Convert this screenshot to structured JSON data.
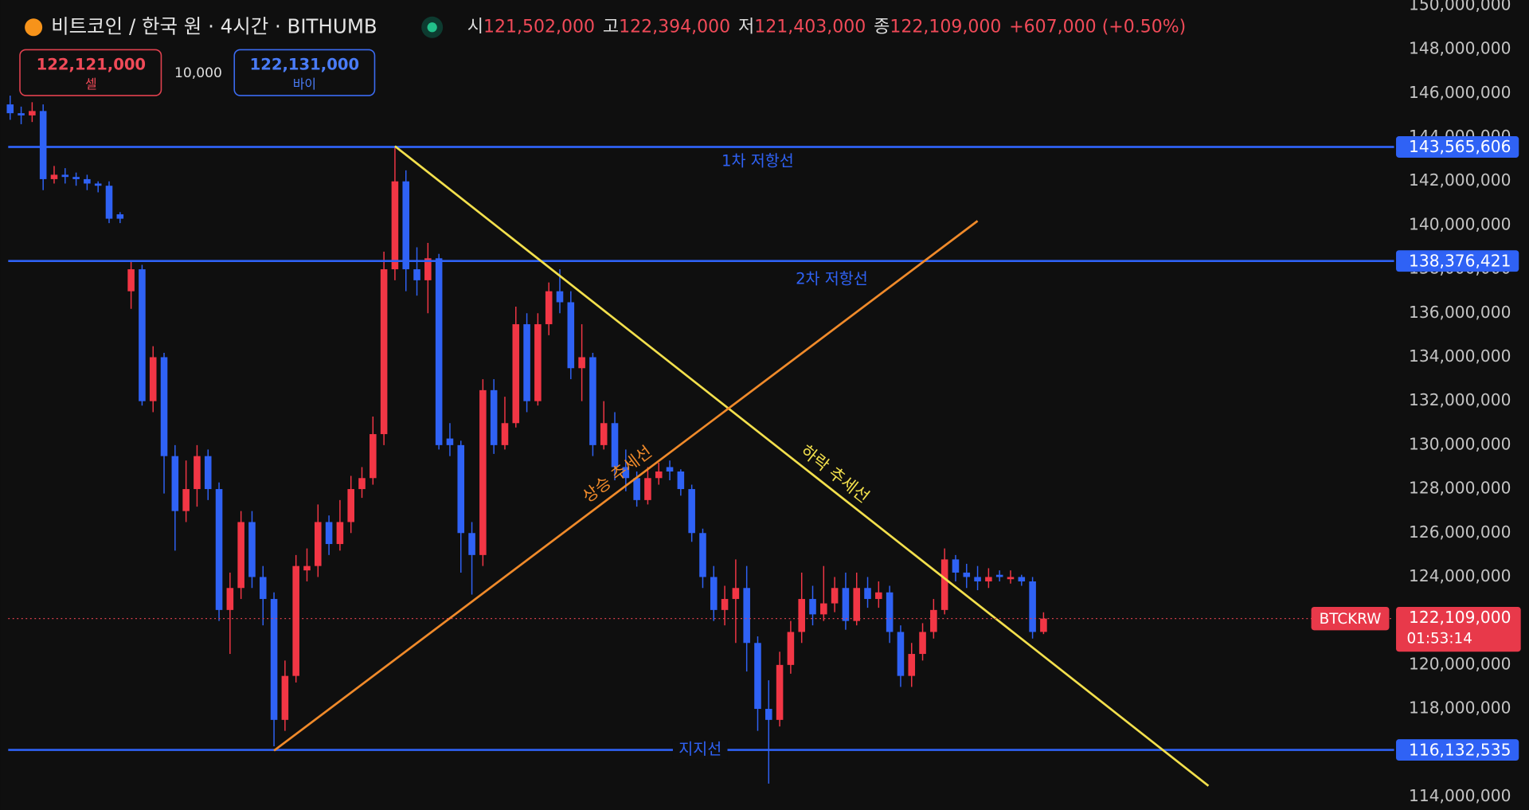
{
  "chart_data": {
    "type": "candlestick",
    "title": "비트코인 / 한국 원 · 4시간 · BITHUMB",
    "stats": [
      {
        "label": "시",
        "value": "121,502,000"
      },
      {
        "label": "고",
        "value": "122,394,000"
      },
      {
        "label": "저",
        "value": "121,403,000"
      },
      {
        "label": "종",
        "value": "122,109,000"
      }
    ],
    "change": "+607,000 (+0.50%)",
    "up_color": "#f23645",
    "down_color": "#2f62f5",
    "open": [
      145500000,
      145100000,
      145000000,
      145200000,
      142100000,
      142300000,
      142200000,
      142100000,
      141900000,
      141800000,
      140500000,
      137000000,
      138000000,
      132000000,
      134000000,
      129500000,
      127000000,
      128000000,
      129500000,
      128000000,
      122500000,
      123500000,
      126500000,
      124000000,
      123000000,
      117500000,
      119500000,
      124300000,
      124500000,
      126500000,
      125500000,
      126500000,
      128000000,
      128500000,
      130500000,
      138000000,
      142000000,
      138000000,
      137500000,
      138500000,
      130300000,
      130000000,
      126000000,
      125000000,
      132500000,
      130000000,
      131000000,
      135500000,
      132000000,
      135500000,
      137000000,
      136500000,
      133500000,
      134000000,
      130000000,
      131000000,
      129000000,
      128500000,
      127500000,
      128500000,
      129000000,
      128800000,
      128000000,
      126000000,
      124000000,
      122500000,
      123000000,
      123500000,
      121000000,
      118000000,
      117500000,
      120000000,
      121500000,
      123000000,
      122300000,
      122800000,
      123500000,
      122000000,
      123500000,
      123000000,
      123300000,
      121500000,
      119500000,
      120500000,
      121500000,
      122500000,
      124800000,
      124200000,
      124000000,
      123800000,
      124100000,
      123900000,
      124000000,
      123800000,
      121502000
    ],
    "high": [
      145900000,
      145400000,
      145600000,
      145500000,
      142700000,
      142600000,
      142400000,
      142300000,
      142000000,
      142000000,
      140600000,
      138400000,
      138200000,
      134500000,
      134200000,
      130000000,
      129300000,
      130000000,
      129800000,
      128300000,
      124200000,
      127000000,
      127000000,
      124500000,
      123300000,
      120200000,
      125000000,
      125300000,
      127300000,
      126800000,
      127500000,
      128600000,
      129000000,
      131300000,
      138800000,
      143600000,
      142500000,
      139000000,
      139200000,
      138700000,
      131000000,
      130200000,
      126500000,
      133000000,
      133000000,
      132200000,
      136300000,
      136000000,
      136000000,
      137400000,
      138000000,
      137000000,
      135500000,
      134200000,
      132000000,
      131500000,
      129800000,
      128800000,
      129000000,
      129200000,
      129300000,
      128900000,
      128200000,
      126200000,
      124500000,
      123600000,
      124800000,
      124500000,
      121300000,
      119300000,
      120600000,
      122000000,
      124200000,
      123600000,
      124500000,
      124000000,
      124200000,
      124200000,
      124000000,
      123800000,
      123600000,
      121800000,
      121000000,
      121900000,
      123000000,
      125300000,
      125000000,
      124600000,
      124500000,
      124400000,
      124300000,
      124300000,
      124100000,
      124000000,
      122394000
    ],
    "low": [
      144800000,
      144600000,
      144700000,
      141600000,
      141900000,
      141900000,
      141800000,
      141600000,
      141500000,
      140100000,
      140100000,
      136200000,
      131800000,
      131500000,
      127800000,
      125200000,
      126500000,
      127200000,
      127500000,
      122000000,
      120500000,
      123000000,
      123500000,
      121800000,
      116300000,
      117000000,
      119200000,
      123800000,
      124000000,
      125000000,
      125200000,
      126000000,
      127600000,
      128200000,
      130000000,
      137500000,
      137000000,
      136800000,
      136000000,
      129800000,
      129500000,
      124200000,
      123200000,
      124500000,
      129600000,
      129800000,
      130800000,
      131500000,
      131800000,
      135000000,
      136000000,
      133000000,
      132000000,
      129500000,
      129800000,
      128400000,
      127900000,
      127200000,
      127300000,
      128200000,
      128400000,
      127700000,
      125600000,
      123500000,
      122000000,
      121800000,
      121000000,
      119700000,
      117000000,
      114600000,
      117200000,
      119600000,
      121000000,
      121800000,
      122000000,
      122400000,
      121600000,
      121800000,
      122600000,
      122600000,
      121000000,
      119000000,
      119000000,
      120200000,
      121200000,
      122300000,
      123800000,
      123500000,
      123400000,
      123500000,
      123800000,
      123700000,
      123600000,
      121200000,
      121403000
    ],
    "close": [
      145100000,
      145000000,
      145200000,
      142100000,
      142300000,
      142200000,
      142100000,
      141900000,
      141800000,
      140300000,
      140300000,
      138000000,
      132000000,
      134000000,
      129500000,
      127000000,
      128000000,
      129500000,
      128000000,
      122500000,
      123500000,
      126500000,
      124000000,
      123000000,
      117500000,
      119500000,
      124500000,
      124500000,
      126500000,
      125500000,
      126500000,
      128000000,
      128500000,
      130500000,
      138000000,
      142000000,
      138000000,
      137500000,
      138500000,
      130000000,
      130000000,
      126000000,
      125000000,
      132500000,
      130000000,
      131000000,
      135500000,
      132000000,
      135500000,
      137000000,
      136500000,
      133500000,
      134000000,
      130000000,
      131000000,
      129000000,
      128500000,
      127500000,
      128500000,
      128800000,
      128800000,
      128000000,
      126000000,
      124000000,
      122500000,
      123000000,
      123500000,
      121000000,
      118000000,
      117500000,
      120000000,
      121500000,
      123000000,
      122300000,
      122800000,
      123500000,
      122000000,
      123500000,
      123000000,
      123300000,
      121500000,
      119500000,
      120500000,
      121500000,
      122500000,
      124800000,
      124200000,
      124000000,
      123800000,
      124000000,
      124000000,
      124000000,
      123800000,
      121500000,
      122109000
    ],
    "ylim": [
      113400000,
      150250000
    ],
    "yticks": [
      {
        "value": 114000000,
        "label": "114,000,000"
      },
      {
        "value": 116000000,
        "label": "116,000,000"
      },
      {
        "value": 118000000,
        "label": "118,000,000"
      },
      {
        "value": 120000000,
        "label": "120,000,000"
      },
      {
        "value": 122000000,
        "label": "122,000,000"
      },
      {
        "value": 124000000,
        "label": "124,000,000"
      },
      {
        "value": 126000000,
        "label": "126,000,000"
      },
      {
        "value": 128000000,
        "label": "128,000,000"
      },
      {
        "value": 130000000,
        "label": "130,000,000"
      },
      {
        "value": 132000000,
        "label": "132,000,000"
      },
      {
        "value": 134000000,
        "label": "134,000,000"
      },
      {
        "value": 136000000,
        "label": "136,000,000"
      },
      {
        "value": 138000000,
        "label": "138,000,000"
      },
      {
        "value": 140000000,
        "label": "140,000,000"
      },
      {
        "value": 142000000,
        "label": "142,000,000"
      },
      {
        "value": 144000000,
        "label": "144,000,000"
      },
      {
        "value": 146000000,
        "label": "146,000,000"
      },
      {
        "value": 148000000,
        "label": "148,000,000"
      },
      {
        "value": 150000000,
        "label": "150,000,000"
      }
    ],
    "levels": [
      {
        "name": "1차 저항선",
        "value": 143565606,
        "label": "143,565,606",
        "color": "#2f62f5"
      },
      {
        "name": "2차 저항선",
        "value": 138376421,
        "label": "138,376,421",
        "color": "#2f62f5"
      },
      {
        "name": "지지선",
        "value": 116132535,
        "label": "116,132,535",
        "color": "#2f62f5"
      }
    ],
    "trendlines": [
      {
        "name": "하락 추세선",
        "color": "#f3e04c",
        "x": [
          35,
          109
        ],
        "y": [
          143600000,
          114500000
        ]
      },
      {
        "name": "상승 추세선",
        "color": "#f08a2a",
        "x": [
          24,
          88
        ],
        "y": [
          116100000,
          140200000
        ]
      }
    ],
    "last_price": {
      "value": 122109000,
      "label": "122,109,000",
      "symbol": "BTCKRW",
      "countdown": "01:53:14"
    }
  },
  "order_panel": {
    "sell": {
      "price": "122,121,000",
      "label": "셀"
    },
    "quantity": "10,000",
    "buy": {
      "price": "122,131,000",
      "label": "바이"
    }
  }
}
